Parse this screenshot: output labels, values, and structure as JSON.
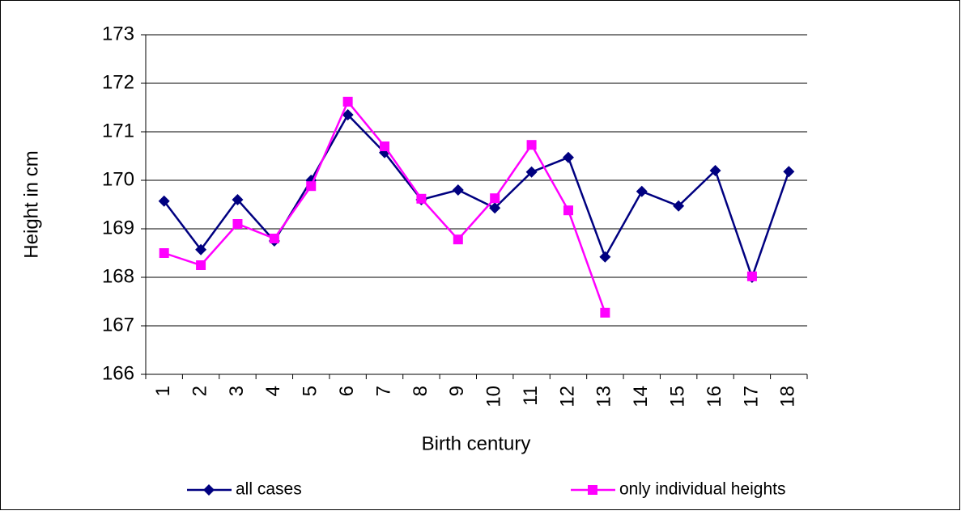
{
  "chart_data": {
    "type": "line",
    "x_label": "Birth century",
    "y_label": "Height in cm",
    "categories": [
      "1",
      "2",
      "3",
      "4",
      "5",
      "6",
      "7",
      "8",
      "9",
      "10",
      "11",
      "12",
      "13",
      "14",
      "15",
      "16",
      "17",
      "18"
    ],
    "series": [
      {
        "name": "all cases",
        "color": "#000080",
        "marker": "diamond",
        "values": [
          169.57,
          168.57,
          169.6,
          168.75,
          170.0,
          171.35,
          170.57,
          169.6,
          169.8,
          169.43,
          170.17,
          170.47,
          168.42,
          169.77,
          169.47,
          170.2,
          168.0,
          170.18
        ]
      },
      {
        "name": "only individual heights",
        "color": "#ff00ff",
        "marker": "square",
        "values": [
          168.5,
          168.25,
          169.1,
          168.8,
          169.88,
          171.62,
          170.7,
          169.62,
          168.78,
          169.63,
          170.73,
          169.38,
          167.27,
          null,
          null,
          null,
          168.02,
          null
        ]
      }
    ],
    "ylim": [
      166,
      173
    ],
    "yticks": [
      166,
      167,
      168,
      169,
      170,
      171,
      172,
      173
    ],
    "grid": true,
    "legend": "bottom"
  }
}
